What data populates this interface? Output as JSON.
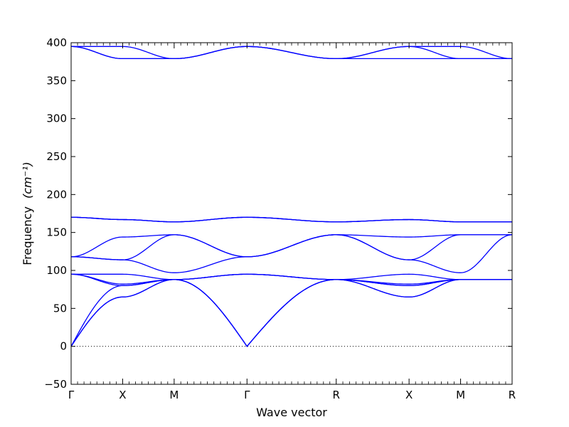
{
  "chart_data": {
    "type": "line",
    "title": "",
    "xlabel": "Wave vector",
    "ylabel": "Frequency",
    "ylabel_unit": "(cm⁻¹)",
    "ylim": [
      -50,
      400
    ],
    "yticks": [
      -50,
      0,
      50,
      100,
      150,
      200,
      250,
      300,
      350,
      400
    ],
    "x_points": [
      {
        "label": "Γ",
        "x": 0
      },
      {
        "label": "X",
        "x": 0.5
      },
      {
        "label": "M",
        "x": 1.0
      },
      {
        "label": "Γ",
        "x": 1.707
      },
      {
        "label": "R",
        "x": 2.573
      },
      {
        "label": "X",
        "x": 3.28
      },
      {
        "label": "M",
        "x": 3.78
      },
      {
        "label": "R",
        "x": 4.28
      }
    ],
    "xlim": [
      0,
      4.28
    ],
    "zero_line": true,
    "grid": false,
    "line_color": "#0000ff",
    "series": [
      {
        "values": [
          0,
          65,
          88,
          0,
          88,
          65,
          88,
          88
        ]
      },
      {
        "values": [
          0,
          65,
          88,
          0,
          88,
          65,
          88,
          88
        ]
      },
      {
        "values": [
          0,
          80,
          88,
          0,
          88,
          80,
          88,
          88
        ]
      },
      {
        "values": [
          95,
          80,
          88,
          95,
          88,
          80,
          88,
          88
        ]
      },
      {
        "values": [
          95,
          82,
          88,
          95,
          88,
          82,
          88,
          88
        ]
      },
      {
        "values": [
          95,
          95,
          88,
          95,
          88,
          95,
          88,
          88
        ]
      },
      {
        "values": [
          118,
          114,
          97,
          118,
          147,
          114,
          97,
          147
        ]
      },
      {
        "values": [
          118,
          114,
          147,
          118,
          147,
          114,
          147,
          147
        ]
      },
      {
        "values": [
          118,
          144,
          147,
          118,
          147,
          144,
          147,
          147
        ]
      },
      {
        "values": [
          170,
          167,
          164,
          170,
          164,
          167,
          164,
          164
        ]
      },
      {
        "values": [
          170,
          167,
          164,
          170,
          164,
          167,
          164,
          164
        ]
      },
      {
        "values": [
          170,
          167,
          164,
          170,
          164,
          167,
          164,
          164
        ]
      },
      {
        "values": [
          395,
          379,
          379,
          395,
          379,
          379,
          379,
          379
        ]
      },
      {
        "values": [
          395,
          379,
          379,
          395,
          379,
          395,
          379,
          379
        ]
      },
      {
        "values": [
          395,
          395,
          379,
          395,
          379,
          395,
          395,
          379
        ]
      }
    ]
  }
}
